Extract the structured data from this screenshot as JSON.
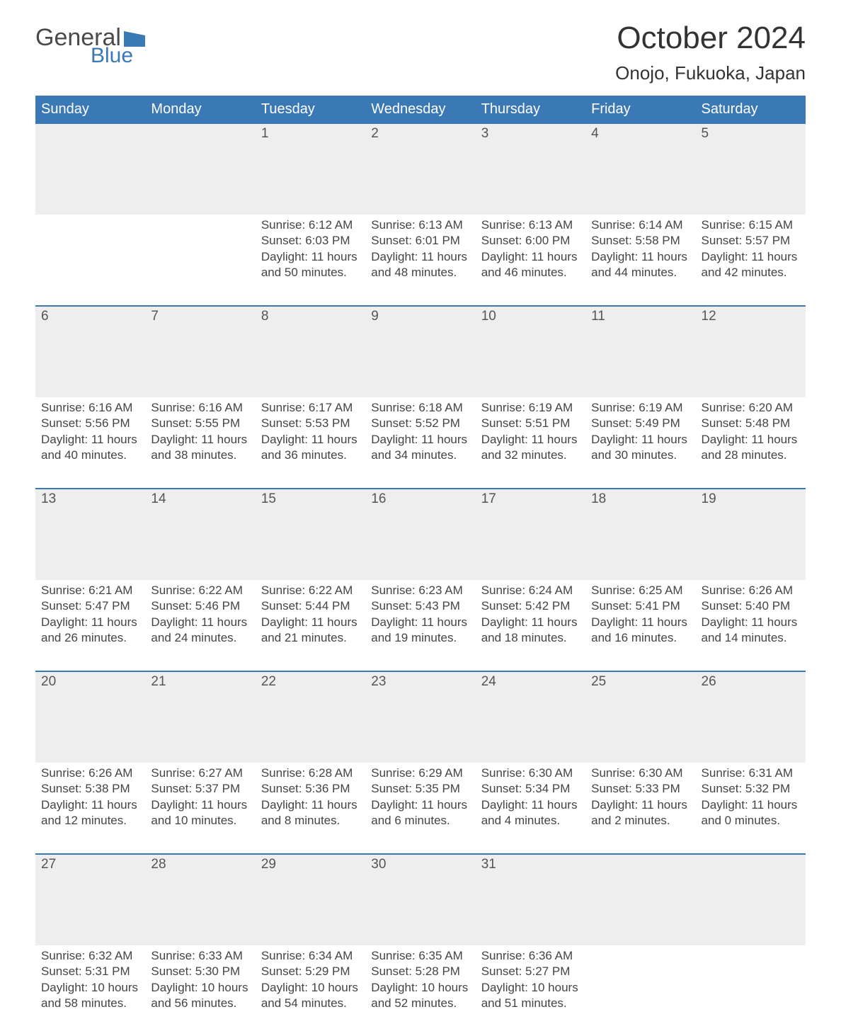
{
  "logo": {
    "text_top": "General",
    "text_bottom": "Blue",
    "flag_color": "#3b78b6",
    "text_top_color": "#4a4a4a"
  },
  "title": "October 2024",
  "location": "Onojo, Fukuoka, Japan",
  "colors": {
    "header_bg": "#3b78b6",
    "header_text": "#ffffff",
    "daynum_bg": "#eeeeee",
    "row_border": "#3b78b6",
    "body_text": "#444444"
  },
  "fonts": {
    "title_size": 44,
    "location_size": 26,
    "header_size": 20,
    "daynum_size": 19,
    "body_size": 17
  },
  "day_headers": [
    "Sunday",
    "Monday",
    "Tuesday",
    "Wednesday",
    "Thursday",
    "Friday",
    "Saturday"
  ],
  "weeks": [
    [
      {
        "num": "",
        "sunrise": "",
        "sunset": "",
        "daylight1": "",
        "daylight2": ""
      },
      {
        "num": "",
        "sunrise": "",
        "sunset": "",
        "daylight1": "",
        "daylight2": ""
      },
      {
        "num": "1",
        "sunrise": "Sunrise: 6:12 AM",
        "sunset": "Sunset: 6:03 PM",
        "daylight1": "Daylight: 11 hours",
        "daylight2": "and 50 minutes."
      },
      {
        "num": "2",
        "sunrise": "Sunrise: 6:13 AM",
        "sunset": "Sunset: 6:01 PM",
        "daylight1": "Daylight: 11 hours",
        "daylight2": "and 48 minutes."
      },
      {
        "num": "3",
        "sunrise": "Sunrise: 6:13 AM",
        "sunset": "Sunset: 6:00 PM",
        "daylight1": "Daylight: 11 hours",
        "daylight2": "and 46 minutes."
      },
      {
        "num": "4",
        "sunrise": "Sunrise: 6:14 AM",
        "sunset": "Sunset: 5:58 PM",
        "daylight1": "Daylight: 11 hours",
        "daylight2": "and 44 minutes."
      },
      {
        "num": "5",
        "sunrise": "Sunrise: 6:15 AM",
        "sunset": "Sunset: 5:57 PM",
        "daylight1": "Daylight: 11 hours",
        "daylight2": "and 42 minutes."
      }
    ],
    [
      {
        "num": "6",
        "sunrise": "Sunrise: 6:16 AM",
        "sunset": "Sunset: 5:56 PM",
        "daylight1": "Daylight: 11 hours",
        "daylight2": "and 40 minutes."
      },
      {
        "num": "7",
        "sunrise": "Sunrise: 6:16 AM",
        "sunset": "Sunset: 5:55 PM",
        "daylight1": "Daylight: 11 hours",
        "daylight2": "and 38 minutes."
      },
      {
        "num": "8",
        "sunrise": "Sunrise: 6:17 AM",
        "sunset": "Sunset: 5:53 PM",
        "daylight1": "Daylight: 11 hours",
        "daylight2": "and 36 minutes."
      },
      {
        "num": "9",
        "sunrise": "Sunrise: 6:18 AM",
        "sunset": "Sunset: 5:52 PM",
        "daylight1": "Daylight: 11 hours",
        "daylight2": "and 34 minutes."
      },
      {
        "num": "10",
        "sunrise": "Sunrise: 6:19 AM",
        "sunset": "Sunset: 5:51 PM",
        "daylight1": "Daylight: 11 hours",
        "daylight2": "and 32 minutes."
      },
      {
        "num": "11",
        "sunrise": "Sunrise: 6:19 AM",
        "sunset": "Sunset: 5:49 PM",
        "daylight1": "Daylight: 11 hours",
        "daylight2": "and 30 minutes."
      },
      {
        "num": "12",
        "sunrise": "Sunrise: 6:20 AM",
        "sunset": "Sunset: 5:48 PM",
        "daylight1": "Daylight: 11 hours",
        "daylight2": "and 28 minutes."
      }
    ],
    [
      {
        "num": "13",
        "sunrise": "Sunrise: 6:21 AM",
        "sunset": "Sunset: 5:47 PM",
        "daylight1": "Daylight: 11 hours",
        "daylight2": "and 26 minutes."
      },
      {
        "num": "14",
        "sunrise": "Sunrise: 6:22 AM",
        "sunset": "Sunset: 5:46 PM",
        "daylight1": "Daylight: 11 hours",
        "daylight2": "and 24 minutes."
      },
      {
        "num": "15",
        "sunrise": "Sunrise: 6:22 AM",
        "sunset": "Sunset: 5:44 PM",
        "daylight1": "Daylight: 11 hours",
        "daylight2": "and 21 minutes."
      },
      {
        "num": "16",
        "sunrise": "Sunrise: 6:23 AM",
        "sunset": "Sunset: 5:43 PM",
        "daylight1": "Daylight: 11 hours",
        "daylight2": "and 19 minutes."
      },
      {
        "num": "17",
        "sunrise": "Sunrise: 6:24 AM",
        "sunset": "Sunset: 5:42 PM",
        "daylight1": "Daylight: 11 hours",
        "daylight2": "and 18 minutes."
      },
      {
        "num": "18",
        "sunrise": "Sunrise: 6:25 AM",
        "sunset": "Sunset: 5:41 PM",
        "daylight1": "Daylight: 11 hours",
        "daylight2": "and 16 minutes."
      },
      {
        "num": "19",
        "sunrise": "Sunrise: 6:26 AM",
        "sunset": "Sunset: 5:40 PM",
        "daylight1": "Daylight: 11 hours",
        "daylight2": "and 14 minutes."
      }
    ],
    [
      {
        "num": "20",
        "sunrise": "Sunrise: 6:26 AM",
        "sunset": "Sunset: 5:38 PM",
        "daylight1": "Daylight: 11 hours",
        "daylight2": "and 12 minutes."
      },
      {
        "num": "21",
        "sunrise": "Sunrise: 6:27 AM",
        "sunset": "Sunset: 5:37 PM",
        "daylight1": "Daylight: 11 hours",
        "daylight2": "and 10 minutes."
      },
      {
        "num": "22",
        "sunrise": "Sunrise: 6:28 AM",
        "sunset": "Sunset: 5:36 PM",
        "daylight1": "Daylight: 11 hours",
        "daylight2": "and 8 minutes."
      },
      {
        "num": "23",
        "sunrise": "Sunrise: 6:29 AM",
        "sunset": "Sunset: 5:35 PM",
        "daylight1": "Daylight: 11 hours",
        "daylight2": "and 6 minutes."
      },
      {
        "num": "24",
        "sunrise": "Sunrise: 6:30 AM",
        "sunset": "Sunset: 5:34 PM",
        "daylight1": "Daylight: 11 hours",
        "daylight2": "and 4 minutes."
      },
      {
        "num": "25",
        "sunrise": "Sunrise: 6:30 AM",
        "sunset": "Sunset: 5:33 PM",
        "daylight1": "Daylight: 11 hours",
        "daylight2": "and 2 minutes."
      },
      {
        "num": "26",
        "sunrise": "Sunrise: 6:31 AM",
        "sunset": "Sunset: 5:32 PM",
        "daylight1": "Daylight: 11 hours",
        "daylight2": "and 0 minutes."
      }
    ],
    [
      {
        "num": "27",
        "sunrise": "Sunrise: 6:32 AM",
        "sunset": "Sunset: 5:31 PM",
        "daylight1": "Daylight: 10 hours",
        "daylight2": "and 58 minutes."
      },
      {
        "num": "28",
        "sunrise": "Sunrise: 6:33 AM",
        "sunset": "Sunset: 5:30 PM",
        "daylight1": "Daylight: 10 hours",
        "daylight2": "and 56 minutes."
      },
      {
        "num": "29",
        "sunrise": "Sunrise: 6:34 AM",
        "sunset": "Sunset: 5:29 PM",
        "daylight1": "Daylight: 10 hours",
        "daylight2": "and 54 minutes."
      },
      {
        "num": "30",
        "sunrise": "Sunrise: 6:35 AM",
        "sunset": "Sunset: 5:28 PM",
        "daylight1": "Daylight: 10 hours",
        "daylight2": "and 52 minutes."
      },
      {
        "num": "31",
        "sunrise": "Sunrise: 6:36 AM",
        "sunset": "Sunset: 5:27 PM",
        "daylight1": "Daylight: 10 hours",
        "daylight2": "and 51 minutes."
      },
      {
        "num": "",
        "sunrise": "",
        "sunset": "",
        "daylight1": "",
        "daylight2": ""
      },
      {
        "num": "",
        "sunrise": "",
        "sunset": "",
        "daylight1": "",
        "daylight2": ""
      }
    ]
  ]
}
